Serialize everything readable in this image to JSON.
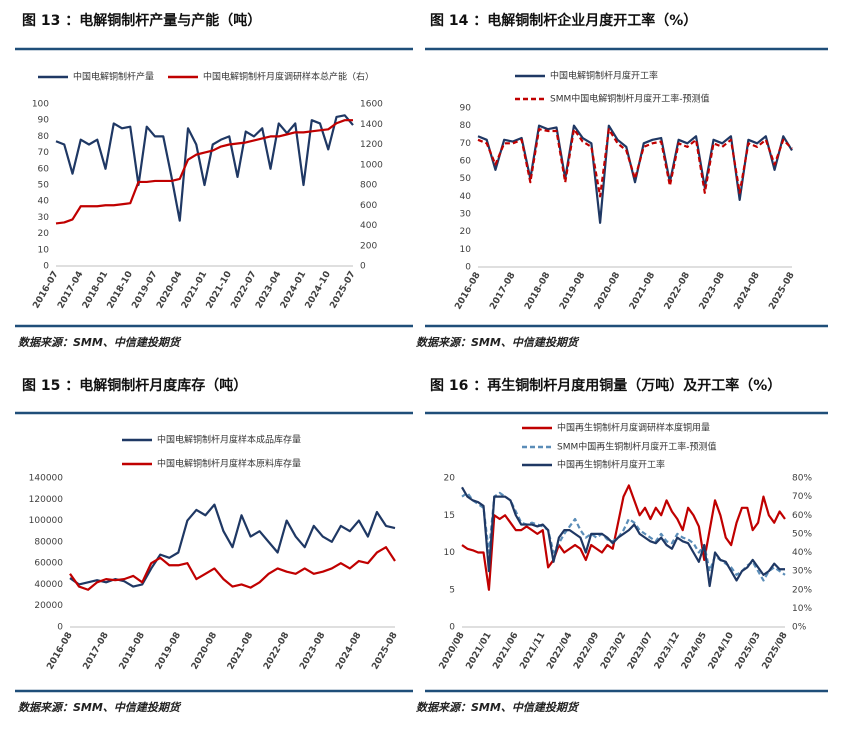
{
  "chart_data": [
    {
      "type": "line",
      "title": "图 13 ：电解铜制杆产量与产能（吨）",
      "source": "数据来源：SMM、中信建投期货",
      "categories": [
        "2016-07",
        null,
        null,
        "2017-04",
        null,
        null,
        "2018-01",
        null,
        null,
        "2018-10",
        null,
        null,
        "2019-07",
        null,
        null,
        "2020-04",
        null,
        null,
        "2021-01",
        null,
        null,
        "2021-10",
        null,
        null,
        "2022-07",
        null,
        null,
        "2023-04",
        null,
        null,
        "2024-01",
        null,
        null,
        "2024-10",
        null,
        null,
        "2025-07"
      ],
      "ylim": [
        0,
        100
      ],
      "yticks": [
        0,
        10,
        20,
        30,
        40,
        50,
        60,
        70,
        80,
        90,
        100
      ],
      "y2lim": [
        0,
        1600
      ],
      "y2ticks": [
        0,
        200,
        400,
        600,
        800,
        1000,
        1200,
        1400,
        1600
      ],
      "series": [
        {
          "name": "中国电解铜制杆产量",
          "color": "#1f3864",
          "values": [
            77,
            75,
            57,
            78,
            75,
            78,
            60,
            88,
            85,
            86,
            50,
            86,
            80,
            80,
            55,
            28,
            85,
            75,
            50,
            75,
            78,
            80,
            55,
            83,
            80,
            85,
            60,
            88,
            82,
            88,
            50,
            90,
            88,
            72,
            92,
            93,
            87
          ]
        },
        {
          "name": "中国电解铜制杆月度调研样本总产能（右）",
          "color": "#c00000",
          "axis": "y2",
          "values": [
            420,
            430,
            460,
            590,
            590,
            590,
            600,
            600,
            610,
            620,
            830,
            830,
            840,
            840,
            840,
            860,
            1050,
            1100,
            1120,
            1140,
            1180,
            1200,
            1210,
            1220,
            1240,
            1260,
            1280,
            1280,
            1300,
            1320,
            1320,
            1330,
            1340,
            1350,
            1410,
            1440,
            1440
          ]
        }
      ]
    },
    {
      "type": "line",
      "title": "图 14 ：电解铜制杆企业月度开工率（%）",
      "source": "数据来源：SMM、中信建投期货",
      "categories": [
        "2016-08",
        null,
        null,
        null,
        "2017-08",
        null,
        null,
        null,
        "2018-08",
        null,
        null,
        null,
        "2019-08",
        null,
        null,
        null,
        "2020-08",
        null,
        null,
        null,
        "2021-08",
        null,
        null,
        null,
        "2022-08",
        null,
        null,
        null,
        "2023-08",
        null,
        null,
        null,
        "2024-08",
        null,
        null,
        null,
        "2025-08"
      ],
      "ylim": [
        0,
        90
      ],
      "yticks": [
        0,
        10,
        20,
        30,
        40,
        50,
        60,
        70,
        80,
        90
      ],
      "series": [
        {
          "name": "中国电解铜制杆月度开工率",
          "color": "#1f3864",
          "values": [
            74,
            72,
            55,
            72,
            71,
            73,
            50,
            80,
            78,
            79,
            50,
            80,
            73,
            70,
            25,
            80,
            72,
            68,
            48,
            70,
            72,
            73,
            48,
            72,
            70,
            74,
            45,
            72,
            70,
            74,
            38,
            72,
            70,
            74,
            55,
            74,
            66
          ]
        },
        {
          "name": "SMM中国电解铜制杆月度开工率-预测值",
          "color": "#c00000",
          "dashed": true,
          "values": [
            72,
            70,
            58,
            70,
            70,
            72,
            48,
            78,
            77,
            77,
            48,
            78,
            71,
            68,
            40,
            78,
            70,
            66,
            50,
            68,
            70,
            71,
            46,
            70,
            68,
            72,
            42,
            70,
            68,
            72,
            42,
            70,
            68,
            72,
            58,
            72,
            67
          ]
        }
      ]
    },
    {
      "type": "line",
      "title": "图 15 ：电解铜制杆月度库存（吨）",
      "source": "数据来源：SMM、中信建投期货",
      "categories": [
        "2016-08",
        null,
        null,
        null,
        "2017-08",
        null,
        null,
        null,
        "2018-08",
        null,
        null,
        null,
        "2019-08",
        null,
        null,
        null,
        "2020-08",
        null,
        null,
        null,
        "2021-08",
        null,
        null,
        null,
        "2022-08",
        null,
        null,
        null,
        "2023-08",
        null,
        null,
        null,
        "2024-08",
        null,
        null,
        null,
        "2025-08"
      ],
      "ylim": [
        0,
        140000
      ],
      "yticks": [
        0,
        20000,
        40000,
        60000,
        80000,
        100000,
        120000,
        140000
      ],
      "series": [
        {
          "name": "中国电解铜制杆月度样本成品库存量",
          "color": "#1f3864",
          "values": [
            46000,
            40000,
            42000,
            44000,
            42000,
            45000,
            43000,
            38000,
            40000,
            55000,
            68000,
            65000,
            70000,
            100000,
            110000,
            105000,
            115000,
            90000,
            75000,
            105000,
            85000,
            90000,
            80000,
            70000,
            100000,
            85000,
            75000,
            95000,
            85000,
            80000,
            95000,
            90000,
            100000,
            85000,
            108000,
            95000,
            93000
          ]
        },
        {
          "name": "中国电解铜制杆月度样本原料库存量",
          "color": "#c00000",
          "values": [
            50000,
            38000,
            35000,
            42000,
            45000,
            44000,
            45000,
            48000,
            42000,
            60000,
            65000,
            58000,
            58000,
            60000,
            45000,
            50000,
            55000,
            45000,
            38000,
            40000,
            37000,
            42000,
            50000,
            55000,
            52000,
            50000,
            55000,
            50000,
            52000,
            55000,
            60000,
            55000,
            62000,
            60000,
            70000,
            75000,
            62000
          ]
        }
      ]
    },
    {
      "type": "line",
      "title": "图 16 ：再生铜制杆月度用铜量（万吨）及开工率（%）",
      "source": "数据来源：SMM、中信建投期货",
      "categories": [
        "2020/08",
        null,
        null,
        null,
        null,
        "2021/01",
        null,
        null,
        null,
        null,
        "2021/06",
        null,
        null,
        null,
        null,
        "2021/11",
        null,
        null,
        null,
        null,
        "2022/04",
        null,
        null,
        null,
        null,
        "2022/09",
        null,
        null,
        null,
        null,
        "2023/02",
        null,
        null,
        null,
        null,
        "2023/07",
        null,
        null,
        null,
        null,
        "2023/12",
        null,
        null,
        null,
        null,
        "2024/05",
        null,
        null,
        null,
        null,
        "2024/10",
        null,
        null,
        null,
        null,
        "2025/03",
        null,
        null,
        null,
        null,
        "2025/08"
      ],
      "ylim": [
        0,
        20
      ],
      "yticks": [
        0,
        5,
        10,
        15,
        20
      ],
      "y2lim": [
        0,
        80
      ],
      "y2ticks": [
        {
          "value": 0,
          "label": "0%"
        },
        {
          "value": 10,
          "label": "10%"
        },
        {
          "value": 20,
          "label": "20%"
        },
        {
          "value": 30,
          "label": "30%"
        },
        {
          "value": 40,
          "label": "40%"
        },
        {
          "value": 50,
          "label": "50%"
        },
        {
          "value": 60,
          "label": "60%"
        },
        {
          "value": 70,
          "label": "70%"
        },
        {
          "value": 80,
          "label": "80%"
        }
      ],
      "series": [
        {
          "name": "中国再生铜制杆月度调研样本度铜用量",
          "color": "#c00000",
          "values": [
            11,
            10.5,
            10.3,
            10,
            10,
            5,
            15,
            14.5,
            15,
            14,
            13,
            13,
            13.5,
            13,
            12.5,
            13,
            8,
            9,
            11,
            10,
            10.5,
            11,
            10.5,
            9,
            11,
            10.5,
            10,
            11,
            10.5,
            14,
            17.5,
            19,
            17,
            15,
            16,
            14.5,
            16,
            15,
            17,
            15.5,
            14.5,
            13,
            16,
            15,
            13.5,
            9,
            13,
            17,
            15,
            12,
            11,
            14,
            16,
            16,
            13,
            14,
            17.5,
            15,
            14,
            15.5,
            14.5
          ]
        },
        {
          "name": "SMM中国再生铜制杆月度开工率-预测值",
          "color": "#5b8db8",
          "dashed": true,
          "axis": "y2",
          "values": [
            70,
            72,
            68,
            66,
            64,
            40,
            70,
            72,
            70,
            68,
            62,
            56,
            55,
            56,
            55,
            54,
            52,
            40,
            45,
            50,
            54,
            58,
            52,
            48,
            50,
            48,
            50,
            47,
            46,
            48,
            52,
            58,
            56,
            52,
            50,
            48,
            46,
            50,
            46,
            45,
            50,
            48,
            47,
            45,
            40,
            44,
            30,
            38,
            36,
            34,
            32,
            28,
            30,
            33,
            35,
            30,
            25,
            30,
            32,
            30,
            28
          ]
        },
        {
          "name": "中国再生铜制杆月度开工率",
          "color": "#1f3864",
          "axis": "y2",
          "values": [
            75,
            70,
            68,
            67,
            65,
            30,
            70,
            70,
            70,
            68,
            60,
            55,
            55,
            55,
            54,
            55,
            52,
            35,
            48,
            52,
            52,
            50,
            48,
            40,
            50,
            50,
            50,
            48,
            45,
            48,
            50,
            52,
            55,
            50,
            48,
            46,
            45,
            48,
            44,
            42,
            48,
            46,
            45,
            40,
            35,
            44,
            22,
            40,
            36,
            35,
            30,
            25,
            30,
            32,
            36,
            32,
            28,
            30,
            34,
            31,
            31
          ]
        }
      ]
    }
  ]
}
